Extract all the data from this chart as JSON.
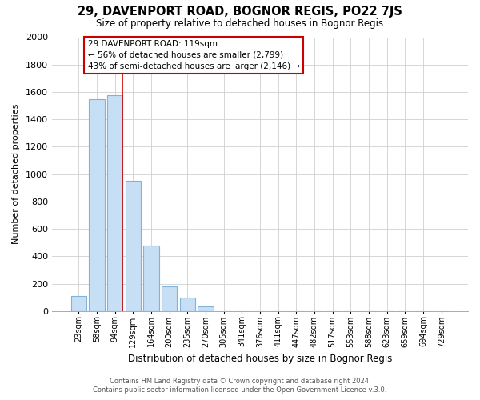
{
  "title": "29, DAVENPORT ROAD, BOGNOR REGIS, PO22 7JS",
  "subtitle": "Size of property relative to detached houses in Bognor Regis",
  "xlabel": "Distribution of detached houses by size in Bognor Regis",
  "ylabel": "Number of detached properties",
  "bar_labels": [
    "23sqm",
    "58sqm",
    "94sqm",
    "129sqm",
    "164sqm",
    "200sqm",
    "235sqm",
    "270sqm",
    "305sqm",
    "341sqm",
    "376sqm",
    "411sqm",
    "447sqm",
    "482sqm",
    "517sqm",
    "553sqm",
    "588sqm",
    "623sqm",
    "659sqm",
    "694sqm",
    "729sqm"
  ],
  "bar_values": [
    110,
    1545,
    1575,
    950,
    475,
    180,
    100,
    35,
    0,
    0,
    0,
    0,
    0,
    0,
    0,
    0,
    0,
    0,
    0,
    0,
    0
  ],
  "bar_color": "#c6dff5",
  "bar_edge_color": "#7fb4d8",
  "grid_color": "#d0d0d0",
  "vline_color": "#cc0000",
  "annotation_title": "29 DAVENPORT ROAD: 119sqm",
  "annotation_line1": "← 56% of detached houses are smaller (2,799)",
  "annotation_line2": "43% of semi-detached houses are larger (2,146) →",
  "annotation_box_color": "#ffffff",
  "annotation_box_edge": "#cc0000",
  "ylim": [
    0,
    2000
  ],
  "yticks": [
    0,
    200,
    400,
    600,
    800,
    1000,
    1200,
    1400,
    1600,
    1800,
    2000
  ],
  "footer_line1": "Contains HM Land Registry data © Crown copyright and database right 2024.",
  "footer_line2": "Contains public sector information licensed under the Open Government Licence v.3.0.",
  "figsize": [
    6.0,
    5.0
  ],
  "dpi": 100
}
